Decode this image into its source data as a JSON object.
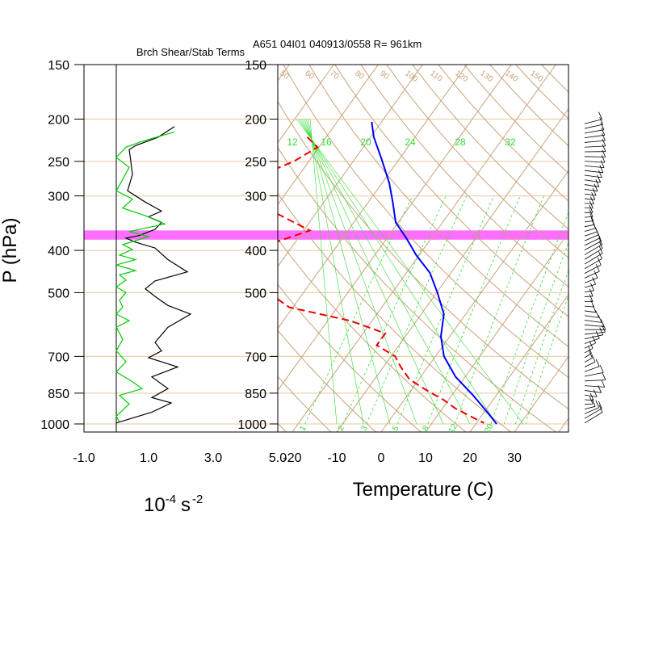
{
  "titles": {
    "left_panel": "Brch Shear/Stab Terms",
    "right_panel": "A651 04I01 040913/0558 R= 961km"
  },
  "colors": {
    "grid_brown": "#c8a27a",
    "pressure_line": "#e8c8a0",
    "mixing_ratio": "#33dd33",
    "temperature": "#0000ff",
    "dewpoint": "#ee0000",
    "highlight": "#ff55ff",
    "shear_term": "#000000",
    "stab_term": "#00cc00"
  },
  "chart_data": [
    {
      "type": "line",
      "panel": "shear-stability",
      "title": "Brch Shear/Stab Terms",
      "ylabel": "P (hPa)",
      "xlabel_main": "10",
      "xlabel_exp1": "-4",
      "xlabel_unit": "s",
      "xlabel_exp2": "-2",
      "y_scale": "log",
      "ylim": [
        1000,
        150
      ],
      "xlim": [
        -1.0,
        5.0
      ],
      "x_tick_labels": [
        "-1.0",
        "1.0",
        "3.0",
        "5.0"
      ],
      "x_tick_values": [
        -1.0,
        1.0,
        3.0,
        5.0
      ],
      "y_tick_labels": [
        "150",
        "200",
        "250",
        "300",
        "400",
        "500",
        "700",
        "850",
        "1000"
      ],
      "y_tick_values": [
        150,
        200,
        250,
        300,
        400,
        500,
        700,
        850,
        1000
      ],
      "highlight_band_hPa": [
        360,
        378
      ],
      "series": [
        {
          "role": "black",
          "points": [
            [
              1.8,
              208
            ],
            [
              1.3,
              220
            ],
            [
              0.6,
              230
            ],
            [
              0.4,
              235
            ],
            [
              0.45,
              250
            ],
            [
              0.5,
              268
            ],
            [
              0.35,
              292
            ],
            [
              0.9,
              310
            ],
            [
              1.4,
              325
            ],
            [
              1.0,
              335
            ],
            [
              1.4,
              345
            ],
            [
              1.2,
              358
            ],
            [
              0.7,
              370
            ],
            [
              0.3,
              375
            ],
            [
              0.6,
              383
            ],
            [
              1.2,
              395
            ],
            [
              1.6,
              420
            ],
            [
              2.2,
              448
            ],
            [
              1.2,
              470
            ],
            [
              0.9,
              490
            ],
            [
              1.2,
              510
            ],
            [
              1.6,
              535
            ],
            [
              2.3,
              560
            ],
            [
              1.6,
              600
            ],
            [
              1.2,
              650
            ],
            [
              1.4,
              680
            ],
            [
              1.0,
              705
            ],
            [
              1.9,
              740
            ],
            [
              1.1,
              780
            ],
            [
              1.6,
              830
            ],
            [
              1.1,
              870
            ],
            [
              1.7,
              895
            ],
            [
              1.1,
              940
            ],
            [
              0.0,
              995
            ]
          ]
        },
        {
          "role": "green",
          "points": [
            [
              1.8,
              214
            ],
            [
              0.8,
              225
            ],
            [
              0.3,
              232
            ],
            [
              0.0,
              245
            ],
            [
              0.4,
              258
            ],
            [
              0.2,
              275
            ],
            [
              0.0,
              292
            ],
            [
              0.5,
              305
            ],
            [
              0.2,
              320
            ],
            [
              0.9,
              333
            ],
            [
              1.5,
              348
            ],
            [
              0.4,
              362
            ],
            [
              1.0,
              372
            ],
            [
              0.2,
              388
            ],
            [
              0.5,
              398
            ],
            [
              0.1,
              410
            ],
            [
              0.6,
              420
            ],
            [
              0.0,
              432
            ],
            [
              0.6,
              445
            ],
            [
              0.1,
              455
            ],
            [
              0.3,
              468
            ],
            [
              0.0,
              485
            ],
            [
              0.3,
              500
            ],
            [
              0.1,
              520
            ],
            [
              0.2,
              540
            ],
            [
              0.0,
              560
            ],
            [
              0.4,
              580
            ],
            [
              0.0,
              600
            ],
            [
              0.2,
              640
            ],
            [
              0.0,
              680
            ],
            [
              0.3,
              720
            ],
            [
              0.0,
              760
            ],
            [
              0.5,
              800
            ],
            [
              0.8,
              830
            ],
            [
              0.1,
              860
            ],
            [
              0.4,
              900
            ],
            [
              0.0,
              960
            ],
            [
              0.1,
              990
            ]
          ]
        }
      ]
    },
    {
      "type": "line",
      "panel": "skew-t",
      "title": "A651 04I01 040913/0558 R= 961km",
      "xlabel": "Temperature (C)",
      "y_scale": "log",
      "ylim": [
        1000,
        150
      ],
      "xlim_at_1000hPa": [
        -23,
        45
      ],
      "x_tick_labels": [
        "-20",
        "-10",
        "0",
        "10",
        "20",
        "30"
      ],
      "x_tick_values": [
        -20,
        -10,
        0,
        10,
        20,
        30
      ],
      "y_tick_labels": [
        "150",
        "200",
        "250",
        "300",
        "400",
        "500",
        "700",
        "850",
        "1000"
      ],
      "y_tick_values": [
        150,
        200,
        250,
        300,
        400,
        500,
        700,
        850,
        1000
      ],
      "mixing_ratio_upper_labels": [
        "12",
        "16",
        "20",
        "24",
        "28",
        "32"
      ],
      "mixing_ratio_lower_labels": [
        "1",
        "2",
        "3",
        "5",
        "8",
        "12",
        "20"
      ],
      "mixing_ratio_lower_values": [
        1,
        2,
        3,
        5,
        8,
        12,
        20
      ],
      "adiabat_labels": [
        "50",
        "60",
        "70",
        "80",
        "90",
        "100",
        "110",
        "120",
        "130",
        "140",
        "150"
      ],
      "series": [
        {
          "name": "Temperature",
          "style": "solid",
          "points": [
            [
              -52,
              203
            ],
            [
              -49,
              220
            ],
            [
              -44,
              245
            ],
            [
              -38,
              280
            ],
            [
              -34,
              310
            ],
            [
              -30,
              345
            ],
            [
              -25,
              375
            ],
            [
              -20,
              410
            ],
            [
              -14,
              450
            ],
            [
              -9,
              500
            ],
            [
              -4,
              560
            ],
            [
              -1,
              630
            ],
            [
              3,
              700
            ],
            [
              9,
              780
            ],
            [
              16,
              860
            ],
            [
              22,
              940
            ],
            [
              26,
              1000
            ]
          ]
        },
        {
          "name": "Dewpoint",
          "style": "dashed",
          "points": [
            [
              -64,
              220
            ],
            [
              -60,
              232
            ],
            [
              -63,
              250
            ],
            [
              -71,
              280
            ],
            [
              -68,
              300
            ],
            [
              -58,
              330
            ],
            [
              -48,
              360
            ],
            [
              -53,
              380
            ],
            [
              -62,
              410
            ],
            [
              -60,
              440
            ],
            [
              -52,
              470
            ],
            [
              -47,
              500
            ],
            [
              -40,
              540
            ],
            [
              -24,
              580
            ],
            [
              -14,
              620
            ],
            [
              -14,
              660
            ],
            [
              -8,
              700
            ],
            [
              -5,
              740
            ],
            [
              -1,
              790
            ],
            [
              5,
              840
            ],
            [
              10,
              880
            ],
            [
              14,
              920
            ],
            [
              20,
              970
            ],
            [
              23,
              995
            ]
          ]
        }
      ]
    }
  ]
}
